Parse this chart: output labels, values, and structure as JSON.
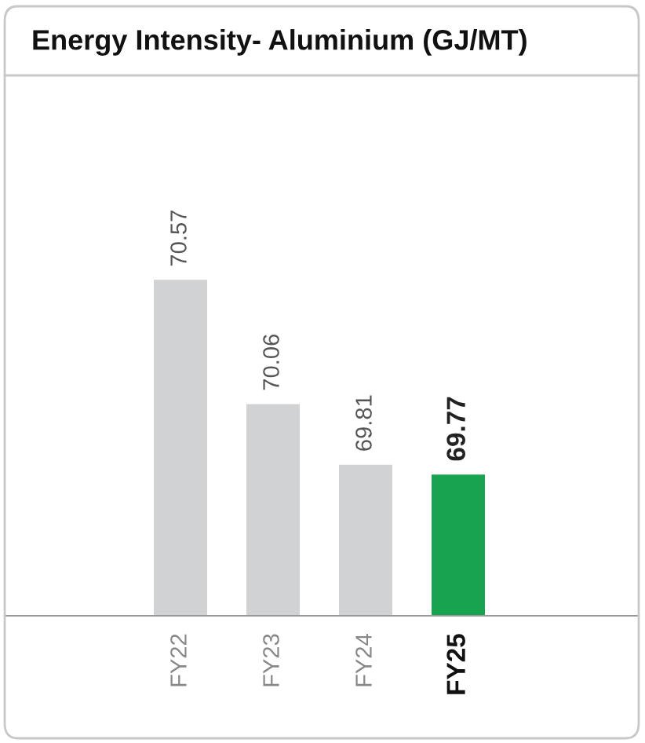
{
  "chart_data": {
    "type": "bar",
    "title": "Energy Intensity- Aluminium (GJ/MT)",
    "categories": [
      "FY22",
      "FY23",
      "FY24",
      "FY25"
    ],
    "values": [
      70.57,
      70.06,
      69.81,
      69.77
    ],
    "colors": [
      "#d1d2d4",
      "#d1d2d4",
      "#d1d2d4",
      "#17a34f"
    ],
    "ylim": [
      69.19,
      71.41
    ],
    "data_labels": true,
    "tick_labels": "x",
    "grid": false,
    "legend": false
  }
}
